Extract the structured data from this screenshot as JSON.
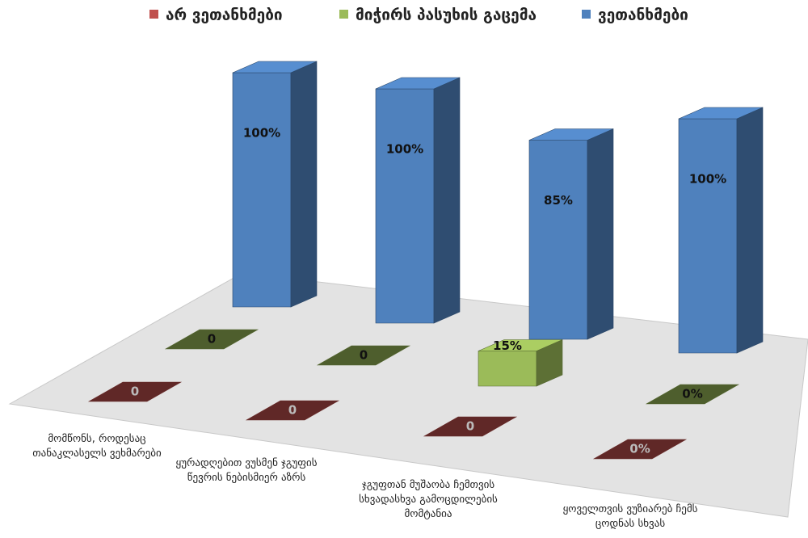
{
  "chart_data": {
    "type": "bar3d",
    "categories": [
      "მომწონს, როდესაც თანაკლასელს ვეხმარები",
      "ყურადღებით ვუსმენ ჯგუფის წევრის ნებისმიერ აზრს",
      "ჯგუფთან მუშაობა ჩემთვის სხვადასხვა გამოცდილების მომტანია",
      "ყოველთვის ვუზიარებ ჩემს ცოდნას სხვას"
    ],
    "series": [
      {
        "name": "არ ვეთანხმები",
        "color": "#c0504d",
        "values": [
          0,
          0,
          0,
          0
        ],
        "value_labels": [
          "0",
          "0",
          "0",
          "0%"
        ]
      },
      {
        "name": "მიჭირს პასუხის გაცემა",
        "color": "#9bbb59",
        "values": [
          0,
          0,
          15,
          0
        ],
        "value_labels": [
          "0",
          "0",
          "15%",
          "0%"
        ]
      },
      {
        "name": "ვეთანხმები",
        "color": "#4f81bd",
        "values": [
          100,
          100,
          85,
          100
        ],
        "value_labels": [
          "100%",
          "100%",
          "85%",
          "100%"
        ]
      }
    ],
    "legend": "top"
  }
}
